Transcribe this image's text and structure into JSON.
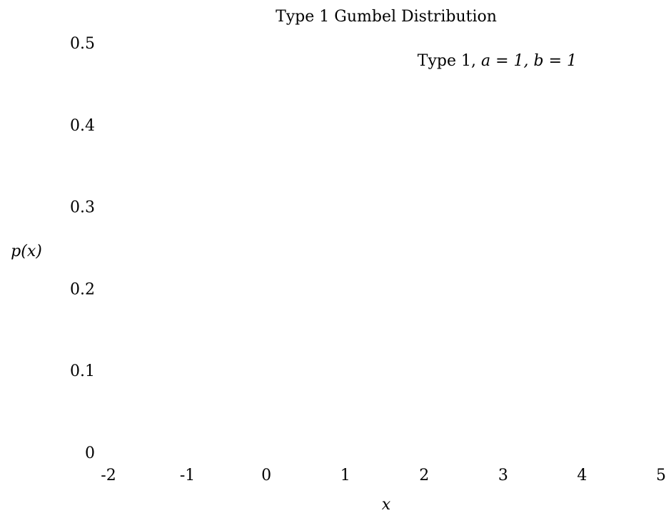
{
  "chart_data": {
    "type": "line",
    "title": "Type 1 Gumbel Distribution",
    "xlabel": "x",
    "ylabel": "p(x)",
    "xlim": [
      -2,
      5
    ],
    "ylim": [
      0,
      0.5
    ],
    "x_ticks": [
      -2,
      -1,
      0,
      1,
      2,
      3,
      4,
      5
    ],
    "x_tick_labels": [
      "-2",
      "-1",
      "0",
      "1",
      "2",
      "3",
      "4",
      "5"
    ],
    "y_ticks": [
      0,
      0.1,
      0.2,
      0.3,
      0.4,
      0.5
    ],
    "y_tick_labels": [
      "0",
      "0.1",
      "0.2",
      "0.3",
      "0.4",
      "0.5"
    ],
    "grid": false,
    "legend_position": "top-right",
    "series": [
      {
        "name": "Type 1, a = 1, b = 1",
        "name_parts": {
          "prefix": "Type 1, ",
          "math": "a = 1, b = 1"
        },
        "x": [],
        "y": []
      }
    ]
  }
}
